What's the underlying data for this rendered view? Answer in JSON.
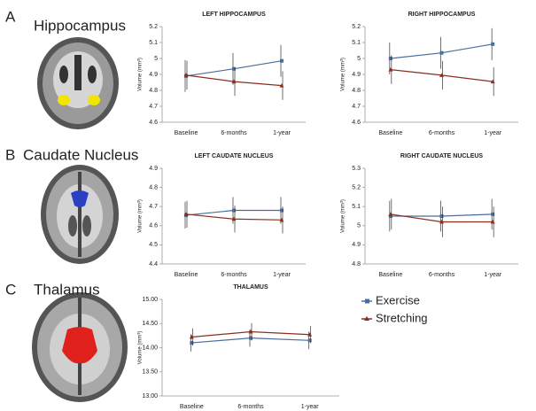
{
  "panels": [
    {
      "letter": "A",
      "label": "Hippocampus"
    },
    {
      "letter": "B",
      "label": "Caudate Nucleus"
    },
    {
      "letter": "C",
      "label": "Thalamus"
    }
  ],
  "chart_data": [
    {
      "type": "line",
      "title": "LEFT HIPPOCAMPUS",
      "y_label": "Volume (mm³)",
      "categories": [
        "Baseline",
        "6-months",
        "1-year"
      ],
      "ylim": [
        4.6,
        5.2
      ],
      "yticks": [
        4.6,
        4.7,
        4.8,
        4.9,
        5,
        5.1,
        5.2
      ],
      "grid": false,
      "series": [
        {
          "color": "#4a6d9c",
          "marker": "square",
          "values": [
            4.89,
            4.935,
            4.985
          ],
          "errors": [
            0.1,
            0.1,
            0.1
          ]
        },
        {
          "color": "#8a2f20",
          "marker": "triangle",
          "values": [
            4.895,
            4.855,
            4.83
          ],
          "errors": [
            0.09,
            0.09,
            0.09
          ]
        }
      ]
    },
    {
      "type": "line",
      "title": "RIGHT HIPPOCAMPUS",
      "y_label": "Volume (mm³)",
      "categories": [
        "Baseline",
        "6-months",
        "1-year"
      ],
      "ylim": [
        4.6,
        5.2
      ],
      "yticks": [
        4.6,
        4.7,
        4.8,
        4.9,
        5,
        5.1,
        5.2
      ],
      "grid": false,
      "series": [
        {
          "color": "#4a6d9c",
          "marker": "square",
          "values": [
            5.0,
            5.035,
            5.09
          ],
          "errors": [
            0.1,
            0.1,
            0.1
          ]
        },
        {
          "color": "#8a2f20",
          "marker": "triangle",
          "values": [
            4.93,
            4.895,
            4.855
          ],
          "errors": [
            0.09,
            0.09,
            0.09
          ]
        }
      ]
    },
    {
      "type": "line",
      "title": "LEFT CAUDATE NUCLEUS",
      "y_label": "Volume (mm³)",
      "categories": [
        "Baseline",
        "6-months",
        "1-year"
      ],
      "ylim": [
        4.4,
        4.9
      ],
      "yticks": [
        4.4,
        4.5,
        4.6,
        4.7,
        4.8,
        4.9
      ],
      "grid": false,
      "series": [
        {
          "color": "#4a6d9c",
          "marker": "square",
          "values": [
            4.655,
            4.68,
            4.68
          ],
          "errors": [
            0.07,
            0.07,
            0.07
          ]
        },
        {
          "color": "#8a2f20",
          "marker": "triangle",
          "values": [
            4.66,
            4.635,
            4.63
          ],
          "errors": [
            0.07,
            0.07,
            0.07
          ]
        }
      ]
    },
    {
      "type": "line",
      "title": "RIGHT CAUDATE NUCLEUS",
      "y_label": "Volume (mm³)",
      "categories": [
        "Baseline",
        "6-months",
        "1-year"
      ],
      "ylim": [
        4.8,
        5.3
      ],
      "yticks": [
        4.8,
        4.9,
        5,
        5.1,
        5.2,
        5.3
      ],
      "grid": false,
      "series": [
        {
          "color": "#4a6d9c",
          "marker": "square",
          "values": [
            5.05,
            5.05,
            5.06
          ],
          "errors": [
            0.08,
            0.08,
            0.08
          ]
        },
        {
          "color": "#8a2f20",
          "marker": "triangle",
          "values": [
            5.06,
            5.02,
            5.02
          ],
          "errors": [
            0.08,
            0.08,
            0.08
          ]
        }
      ]
    },
    {
      "type": "line",
      "title": "THALAMUS",
      "y_label": "Volume (mm³)",
      "categories": [
        "Baseline",
        "6-months",
        "1-year"
      ],
      "ylim": [
        13,
        15
      ],
      "yticks": [
        {
          "value": 13,
          "label": "13.00"
        },
        {
          "value": 13.5,
          "label": "13.50"
        },
        {
          "value": 14,
          "label": "14.00"
        },
        {
          "value": 14.5,
          "label": "14.50"
        },
        {
          "value": 15,
          "label": "15.00"
        }
      ],
      "grid": false,
      "series": [
        {
          "name": "Exercise",
          "color": "#4a6d9c",
          "marker": "square",
          "values": [
            14.1,
            14.2,
            14.15
          ],
          "errors": [
            0.18,
            0.18,
            0.18
          ]
        },
        {
          "name": "Stretching",
          "color": "#8a2f20",
          "marker": "triangle",
          "values": [
            14.22,
            14.33,
            14.27
          ],
          "errors": [
            0.18,
            0.18,
            0.18
          ]
        }
      ]
    }
  ]
}
